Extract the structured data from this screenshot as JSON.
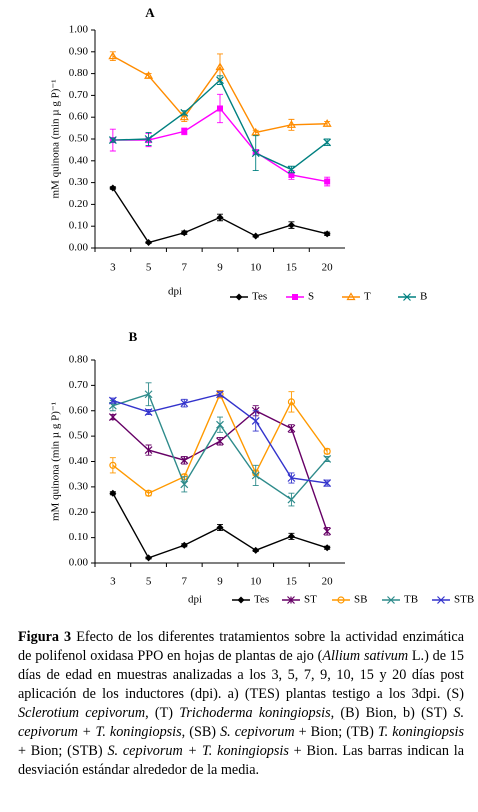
{
  "chart_data": [
    {
      "type": "line",
      "title": "A",
      "xlabel": "dpi",
      "ylabel": "mM quinona (min µ g P)⁻¹",
      "categories": [
        "3",
        "5",
        "7",
        "9",
        "10",
        "15",
        "20"
      ],
      "ylim": [
        0,
        1
      ],
      "yticks": [
        {
          "value": 0,
          "label": "0.00"
        },
        {
          "value": 0.1,
          "label": "0.10"
        },
        {
          "value": 0.2,
          "label": "0.20"
        },
        {
          "value": 0.3,
          "label": "0.30"
        },
        {
          "value": 0.4,
          "label": "0.40"
        },
        {
          "value": 0.5,
          "label": "0.50"
        },
        {
          "value": 0.6,
          "label": "0.60"
        },
        {
          "value": 0.7,
          "label": "0.70"
        },
        {
          "value": 0.8,
          "label": "0.80"
        },
        {
          "value": 0.9,
          "label": "0.90"
        },
        {
          "value": 1,
          "label": "1.00"
        }
      ],
      "series": [
        {
          "name": "Tes",
          "color": "#000000",
          "marker": "diamond",
          "values": [
            0.275,
            0.025,
            0.07,
            0.14,
            0.055,
            0.105,
            0.065
          ],
          "errors": [
            0.006,
            0.004,
            0.008,
            0.015,
            0.005,
            0.015,
            0.008
          ]
        },
        {
          "name": "S",
          "color": "#ff00ff",
          "marker": "square",
          "values": [
            0.495,
            0.495,
            0.535,
            0.64,
            0.44,
            0.335,
            0.305
          ],
          "errors": [
            0.05,
            0.03,
            0.015,
            0.065,
            0.01,
            0.02,
            0.02
          ]
        },
        {
          "name": "T",
          "color": "#ff8c00",
          "marker": "triangle",
          "values": [
            0.88,
            0.79,
            0.6,
            0.83,
            0.53,
            0.565,
            0.57
          ],
          "errors": [
            0.02,
            0.01,
            0.02,
            0.06,
            0.01,
            0.025,
            0.01
          ]
        },
        {
          "name": "B",
          "color": "#008080",
          "marker": "x",
          "values": [
            0.495,
            0.5,
            0.62,
            0.77,
            0.435,
            0.36,
            0.485
          ],
          "errors": [
            0.01,
            0.03,
            0.01,
            0.02,
            0.08,
            0.015,
            0.015
          ]
        }
      ]
    },
    {
      "type": "line",
      "title": "B",
      "xlabel": "dpi",
      "ylabel": "mM quinona (min µ g P)⁻¹",
      "categories": [
        "3",
        "5",
        "7",
        "9",
        "10",
        "15",
        "20"
      ],
      "ylim": [
        0,
        0.8
      ],
      "yticks": [
        {
          "value": 0,
          "label": "0.00"
        },
        {
          "value": 0.1,
          "label": "0.10"
        },
        {
          "value": 0.2,
          "label": "0.20"
        },
        {
          "value": 0.3,
          "label": "0.30"
        },
        {
          "value": 0.4,
          "label": "0.40"
        },
        {
          "value": 0.5,
          "label": "0.50"
        },
        {
          "value": 0.6,
          "label": "0.60"
        },
        {
          "value": 0.7,
          "label": "0.70"
        },
        {
          "value": 0.8,
          "label": "0.80"
        }
      ],
      "series": [
        {
          "name": "Tes",
          "color": "#000000",
          "marker": "diamond",
          "values": [
            0.275,
            0.02,
            0.07,
            0.14,
            0.05,
            0.105,
            0.06
          ],
          "errors": [
            0.006,
            0.004,
            0.006,
            0.012,
            0.005,
            0.012,
            0.006
          ]
        },
        {
          "name": "ST",
          "color": "#660066",
          "marker": "asterisk",
          "values": [
            0.575,
            0.445,
            0.405,
            0.48,
            0.6,
            0.53,
            0.125
          ],
          "errors": [
            0.01,
            0.02,
            0.015,
            0.015,
            0.02,
            0.015,
            0.015
          ]
        },
        {
          "name": "SB",
          "color": "#ff9900",
          "marker": "circle",
          "values": [
            0.385,
            0.275,
            0.34,
            0.665,
            0.355,
            0.635,
            0.44
          ],
          "errors": [
            0.03,
            0.01,
            0.01,
            0.015,
            0.01,
            0.04,
            0.01
          ]
        },
        {
          "name": "TB",
          "color": "#2e8b8b",
          "marker": "x",
          "values": [
            0.62,
            0.665,
            0.31,
            0.545,
            0.345,
            0.25,
            0.41
          ],
          "errors": [
            0.02,
            0.045,
            0.03,
            0.03,
            0.04,
            0.025,
            0.01
          ]
        },
        {
          "name": "STB",
          "color": "#3333cc",
          "marker": "x",
          "values": [
            0.64,
            0.595,
            0.63,
            0.665,
            0.56,
            0.335,
            0.315
          ],
          "errors": [
            0.01,
            0.01,
            0.015,
            0.01,
            0.04,
            0.02,
            0.012
          ]
        }
      ]
    }
  ],
  "caption": [
    {
      "text": "Figura 3",
      "bold": true
    },
    {
      "text": " Efecto de los diferentes tratamientos sobre la actividad enzimática de polifenol oxidasa PPO en hojas de plantas de ajo ("
    },
    {
      "text": "Allium sativum",
      "italic": true
    },
    {
      "text": " L.) de 15 días de edad en muestras analizadas a los 3, 5, 7, 9, 10, 15 y 20 días post aplicación de los inductores (dpi). a) (TES) plantas testigo a los 3dpi. (S) "
    },
    {
      "text": "Sclerotium cepivorum",
      "italic": true
    },
    {
      "text": ", (T) "
    },
    {
      "text": "Trichoderma koningiopsis",
      "italic": true
    },
    {
      "text": ", (B) Bion, b) (ST) "
    },
    {
      "text": "S. cepivorum + T. koningiopsis",
      "italic": true
    },
    {
      "text": ", (SB) "
    },
    {
      "text": "S. cepivorum",
      "italic": true
    },
    {
      "text": " + Bion; (TB) "
    },
    {
      "text": "T. koningiopsis",
      "italic": true
    },
    {
      "text": " + Bion; (STB) "
    },
    {
      "text": "S. cepivorum + T. koningiopsis",
      "italic": true
    },
    {
      "text": " + Bion. Las barras indican la desviación estándar alrededor de la media."
    }
  ]
}
